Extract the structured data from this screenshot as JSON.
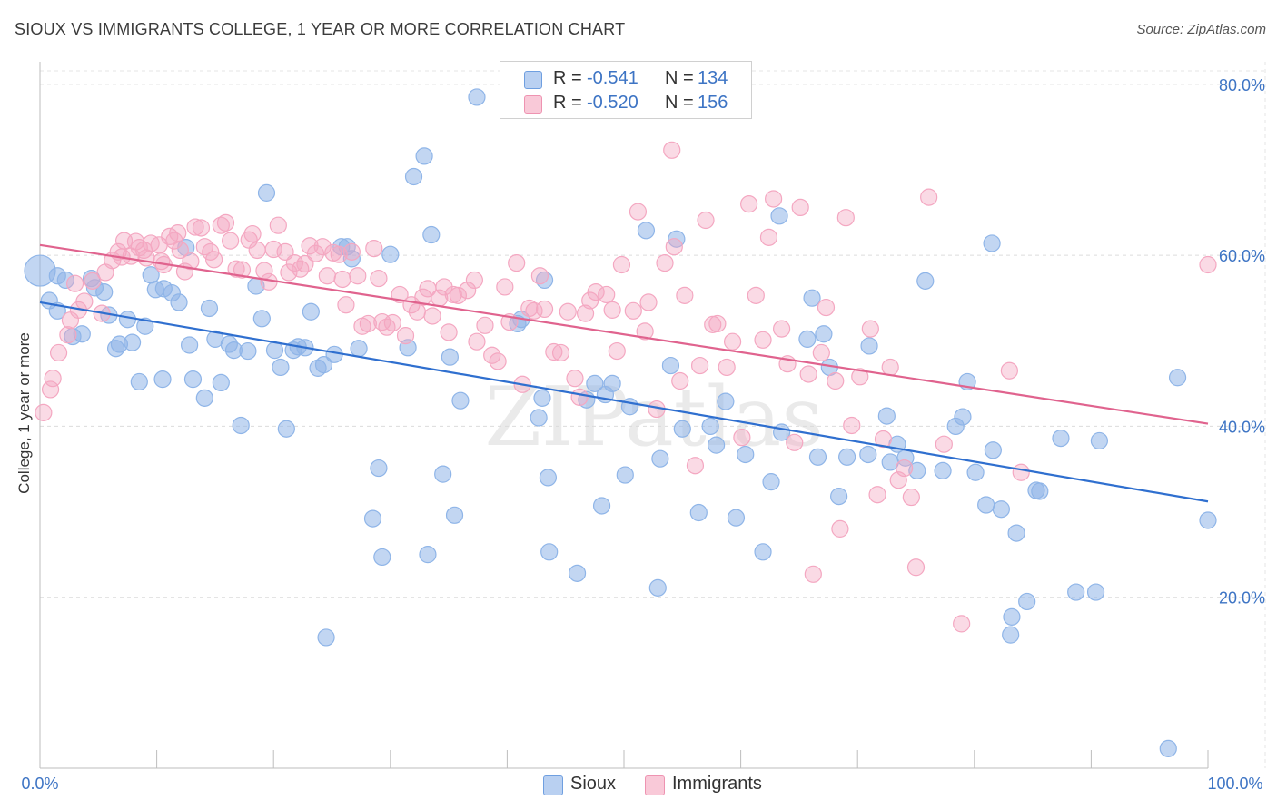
{
  "title": "SIOUX VS IMMIGRANTS COLLEGE, 1 YEAR OR MORE CORRELATION CHART",
  "source": "Source: ZipAtlas.com",
  "watermark": "ZIPatlas",
  "legend": {
    "r_label": "R =",
    "n_label": "N =",
    "rows": [
      {
        "r": "-0.541",
        "n": "134"
      },
      {
        "r": "-0.520",
        "n": "156"
      }
    ]
  },
  "chart_data": {
    "type": "scatter",
    "title": "SIOUX VS IMMIGRANTS COLLEGE, 1 YEAR OR MORE CORRELATION CHART",
    "xlabel": "",
    "ylabel": "College, 1 year or more",
    "xlim": [
      0,
      100
    ],
    "ylim": [
      0,
      82
    ],
    "x_tick_labels": [
      "0.0%",
      "100.0%"
    ],
    "y_ticks": [
      20,
      40,
      60,
      80
    ],
    "y_tick_labels": [
      "20.0%",
      "40.0%",
      "60.0%",
      "80.0%"
    ],
    "grid": true,
    "legend_position": "top-center",
    "series": [
      {
        "name": "Sioux",
        "color": "#8fb5e8",
        "line_color": "#2f6fcf",
        "trend": {
          "x": [
            0,
            100
          ],
          "y": [
            54.5,
            31.2
          ]
        },
        "points": [
          [
            0.0,
            58.2
          ],
          [
            1.5,
            57.6
          ],
          [
            0.8,
            54.7
          ],
          [
            1.5,
            53.5
          ],
          [
            2.2,
            57.1
          ],
          [
            2.8,
            50.5
          ],
          [
            3.6,
            50.8
          ],
          [
            4.4,
            57.3
          ],
          [
            4.7,
            56.2
          ],
          [
            5.5,
            55.7
          ],
          [
            5.9,
            53.0
          ],
          [
            6.5,
            49.1
          ],
          [
            6.8,
            49.6
          ],
          [
            7.5,
            52.5
          ],
          [
            7.9,
            49.8
          ],
          [
            8.5,
            45.2
          ],
          [
            9.0,
            51.7
          ],
          [
            9.5,
            57.7
          ],
          [
            9.9,
            56.0
          ],
          [
            10.5,
            45.5
          ],
          [
            10.6,
            56.1
          ],
          [
            11.3,
            55.6
          ],
          [
            11.9,
            54.5
          ],
          [
            12.5,
            60.9
          ],
          [
            12.8,
            49.5
          ],
          [
            13.1,
            45.5
          ],
          [
            14.1,
            43.3
          ],
          [
            14.5,
            53.8
          ],
          [
            15.0,
            50.2
          ],
          [
            15.5,
            45.1
          ],
          [
            16.2,
            49.6
          ],
          [
            16.6,
            48.9
          ],
          [
            17.2,
            40.1
          ],
          [
            17.8,
            48.8
          ],
          [
            18.5,
            56.4
          ],
          [
            19.0,
            52.6
          ],
          [
            19.4,
            67.3
          ],
          [
            20.1,
            48.9
          ],
          [
            20.6,
            46.9
          ],
          [
            21.1,
            39.7
          ],
          [
            21.7,
            48.9
          ],
          [
            22.1,
            49.3
          ],
          [
            22.7,
            49.2
          ],
          [
            23.2,
            53.4
          ],
          [
            23.8,
            46.8
          ],
          [
            24.3,
            47.2
          ],
          [
            24.5,
            15.3
          ],
          [
            25.2,
            48.4
          ],
          [
            25.8,
            61.0
          ],
          [
            26.3,
            61.0
          ],
          [
            26.7,
            59.6
          ],
          [
            27.3,
            49.1
          ],
          [
            28.5,
            29.2
          ],
          [
            29.0,
            35.1
          ],
          [
            29.3,
            24.7
          ],
          [
            30.0,
            60.1
          ],
          [
            31.5,
            49.2
          ],
          [
            32.0,
            69.2
          ],
          [
            32.9,
            71.6
          ],
          [
            33.2,
            25.0
          ],
          [
            33.5,
            62.4
          ],
          [
            34.5,
            34.4
          ],
          [
            35.1,
            48.1
          ],
          [
            35.5,
            29.6
          ],
          [
            36.0,
            43.0
          ],
          [
            37.4,
            78.5
          ],
          [
            40.9,
            52.0
          ],
          [
            41.2,
            52.5
          ],
          [
            42.7,
            41.0
          ],
          [
            43.0,
            43.3
          ],
          [
            43.2,
            57.1
          ],
          [
            43.5,
            34.0
          ],
          [
            43.6,
            25.3
          ],
          [
            46.0,
            22.8
          ],
          [
            46.8,
            43.1
          ],
          [
            47.5,
            45.0
          ],
          [
            48.1,
            30.7
          ],
          [
            48.4,
            43.7
          ],
          [
            49.0,
            45.0
          ],
          [
            50.1,
            34.3
          ],
          [
            50.5,
            42.3
          ],
          [
            51.9,
            62.9
          ],
          [
            52.9,
            21.1
          ],
          [
            53.1,
            36.2
          ],
          [
            54.0,
            47.1
          ],
          [
            54.5,
            61.9
          ],
          [
            55.0,
            39.7
          ],
          [
            56.4,
            29.9
          ],
          [
            57.4,
            40.0
          ],
          [
            57.9,
            37.8
          ],
          [
            58.7,
            42.9
          ],
          [
            59.6,
            29.3
          ],
          [
            60.4,
            36.7
          ],
          [
            61.9,
            25.3
          ],
          [
            62.6,
            33.5
          ],
          [
            63.3,
            64.6
          ],
          [
            63.5,
            39.3
          ],
          [
            65.7,
            50.2
          ],
          [
            66.1,
            55.0
          ],
          [
            66.6,
            36.4
          ],
          [
            67.1,
            50.8
          ],
          [
            67.6,
            46.9
          ],
          [
            68.4,
            31.8
          ],
          [
            69.1,
            36.4
          ],
          [
            70.9,
            36.7
          ],
          [
            71.0,
            49.4
          ],
          [
            72.5,
            41.2
          ],
          [
            72.8,
            35.8
          ],
          [
            73.4,
            37.9
          ],
          [
            74.1,
            36.3
          ],
          [
            75.1,
            34.8
          ],
          [
            75.8,
            57.0
          ],
          [
            77.3,
            34.8
          ],
          [
            78.4,
            40.0
          ],
          [
            79.0,
            41.1
          ],
          [
            79.4,
            45.2
          ],
          [
            80.1,
            34.6
          ],
          [
            81.0,
            30.8
          ],
          [
            81.5,
            61.4
          ],
          [
            81.6,
            37.2
          ],
          [
            82.3,
            30.3
          ],
          [
            83.1,
            15.6
          ],
          [
            83.2,
            17.7
          ],
          [
            83.6,
            27.5
          ],
          [
            84.5,
            19.5
          ],
          [
            85.3,
            32.5
          ],
          [
            85.6,
            32.4
          ],
          [
            87.4,
            38.6
          ],
          [
            88.7,
            20.6
          ],
          [
            90.4,
            20.6
          ],
          [
            90.7,
            38.3
          ],
          [
            96.6,
            2.3
          ],
          [
            97.4,
            45.7
          ],
          [
            100.0,
            29.0
          ]
        ]
      },
      {
        "name": "Immigrants",
        "color": "#f4a7c1",
        "line_color": "#e0638e",
        "trend": {
          "x": [
            0,
            100
          ],
          "y": [
            61.2,
            40.3
          ]
        },
        "points": [
          [
            0.3,
            41.6
          ],
          [
            0.9,
            44.3
          ],
          [
            1.1,
            45.6
          ],
          [
            1.6,
            48.6
          ],
          [
            2.4,
            50.7
          ],
          [
            2.6,
            52.4
          ],
          [
            3.0,
            56.7
          ],
          [
            3.3,
            53.6
          ],
          [
            3.8,
            54.6
          ],
          [
            4.5,
            57.0
          ],
          [
            5.3,
            53.2
          ],
          [
            5.6,
            58.0
          ],
          [
            6.2,
            59.4
          ],
          [
            6.7,
            60.4
          ],
          [
            7.0,
            59.8
          ],
          [
            7.2,
            61.7
          ],
          [
            7.8,
            59.9
          ],
          [
            8.2,
            61.6
          ],
          [
            8.5,
            60.9
          ],
          [
            8.9,
            60.6
          ],
          [
            9.1,
            59.7
          ],
          [
            9.5,
            61.4
          ],
          [
            10.2,
            61.2
          ],
          [
            10.4,
            59.3
          ],
          [
            10.6,
            58.9
          ],
          [
            11.1,
            62.2
          ],
          [
            11.5,
            61.7
          ],
          [
            11.8,
            62.6
          ],
          [
            12.0,
            60.6
          ],
          [
            12.4,
            58.1
          ],
          [
            12.9,
            59.3
          ],
          [
            13.3,
            63.3
          ],
          [
            13.8,
            63.2
          ],
          [
            14.1,
            61.0
          ],
          [
            14.6,
            60.4
          ],
          [
            14.9,
            59.5
          ],
          [
            15.5,
            63.5
          ],
          [
            15.9,
            63.8
          ],
          [
            16.3,
            61.7
          ],
          [
            16.8,
            58.4
          ],
          [
            17.3,
            58.3
          ],
          [
            17.9,
            61.8
          ],
          [
            18.2,
            62.5
          ],
          [
            18.6,
            60.6
          ],
          [
            19.2,
            58.2
          ],
          [
            19.6,
            56.9
          ],
          [
            20.0,
            60.7
          ],
          [
            20.4,
            63.5
          ],
          [
            21.0,
            60.4
          ],
          [
            21.3,
            58.0
          ],
          [
            21.8,
            59.1
          ],
          [
            22.3,
            58.4
          ],
          [
            22.7,
            59.0
          ],
          [
            23.1,
            61.1
          ],
          [
            23.6,
            60.2
          ],
          [
            24.2,
            61.0
          ],
          [
            24.6,
            57.6
          ],
          [
            25.1,
            60.3
          ],
          [
            25.6,
            60.1
          ],
          [
            25.9,
            57.2
          ],
          [
            26.2,
            54.2
          ],
          [
            26.7,
            60.4
          ],
          [
            27.2,
            57.6
          ],
          [
            27.6,
            51.7
          ],
          [
            28.1,
            52.0
          ],
          [
            28.6,
            60.8
          ],
          [
            29.0,
            57.3
          ],
          [
            29.3,
            52.2
          ],
          [
            29.7,
            51.6
          ],
          [
            30.2,
            52.1
          ],
          [
            30.8,
            55.4
          ],
          [
            31.3,
            50.6
          ],
          [
            31.8,
            54.2
          ],
          [
            32.3,
            53.4
          ],
          [
            32.8,
            55.1
          ],
          [
            33.2,
            56.1
          ],
          [
            33.6,
            52.9
          ],
          [
            34.2,
            55.0
          ],
          [
            34.6,
            56.3
          ],
          [
            35.0,
            51.0
          ],
          [
            35.4,
            55.4
          ],
          [
            35.8,
            55.3
          ],
          [
            36.6,
            55.9
          ],
          [
            37.2,
            57.1
          ],
          [
            37.4,
            49.9
          ],
          [
            38.1,
            51.8
          ],
          [
            38.7,
            48.3
          ],
          [
            39.2,
            47.6
          ],
          [
            39.8,
            56.3
          ],
          [
            40.2,
            52.2
          ],
          [
            40.8,
            59.1
          ],
          [
            41.3,
            44.9
          ],
          [
            41.9,
            53.8
          ],
          [
            42.3,
            53.5
          ],
          [
            42.8,
            57.6
          ],
          [
            43.2,
            53.7
          ],
          [
            44.0,
            48.7
          ],
          [
            44.6,
            48.6
          ],
          [
            45.2,
            53.4
          ],
          [
            45.8,
            45.6
          ],
          [
            46.2,
            43.4
          ],
          [
            46.7,
            53.2
          ],
          [
            47.1,
            54.7
          ],
          [
            47.6,
            55.7
          ],
          [
            48.5,
            55.4
          ],
          [
            49.0,
            53.6
          ],
          [
            49.4,
            48.8
          ],
          [
            49.8,
            58.9
          ],
          [
            50.8,
            53.5
          ],
          [
            51.2,
            65.1
          ],
          [
            51.8,
            51.1
          ],
          [
            52.1,
            54.5
          ],
          [
            52.8,
            42.0
          ],
          [
            53.5,
            59.1
          ],
          [
            54.1,
            72.3
          ],
          [
            54.3,
            61.0
          ],
          [
            54.8,
            45.3
          ],
          [
            55.2,
            55.3
          ],
          [
            56.1,
            35.4
          ],
          [
            56.5,
            47.1
          ],
          [
            57.0,
            64.1
          ],
          [
            57.6,
            51.9
          ],
          [
            58.0,
            52.0
          ],
          [
            58.8,
            46.9
          ],
          [
            59.3,
            49.9
          ],
          [
            60.1,
            38.7
          ],
          [
            60.7,
            66.0
          ],
          [
            61.3,
            55.3
          ],
          [
            61.9,
            50.1
          ],
          [
            62.4,
            62.1
          ],
          [
            62.8,
            66.6
          ],
          [
            63.5,
            51.4
          ],
          [
            64.0,
            47.3
          ],
          [
            64.6,
            38.1
          ],
          [
            65.1,
            65.6
          ],
          [
            65.8,
            46.1
          ],
          [
            66.2,
            22.7
          ],
          [
            66.9,
            48.6
          ],
          [
            67.3,
            53.9
          ],
          [
            68.1,
            45.3
          ],
          [
            68.5,
            28.0
          ],
          [
            69.0,
            64.4
          ],
          [
            69.5,
            40.1
          ],
          [
            70.2,
            45.8
          ],
          [
            71.1,
            51.4
          ],
          [
            71.7,
            32.0
          ],
          [
            72.2,
            38.5
          ],
          [
            72.8,
            46.9
          ],
          [
            73.5,
            33.7
          ],
          [
            74.0,
            35.1
          ],
          [
            74.6,
            31.7
          ],
          [
            75.0,
            23.5
          ],
          [
            76.1,
            66.8
          ],
          [
            77.4,
            37.9
          ],
          [
            78.9,
            16.9
          ],
          [
            83.0,
            46.5
          ],
          [
            84.0,
            34.6
          ],
          [
            100.0,
            58.9
          ]
        ]
      }
    ]
  },
  "bottom_legend": [
    "Sioux",
    "Immigrants"
  ]
}
